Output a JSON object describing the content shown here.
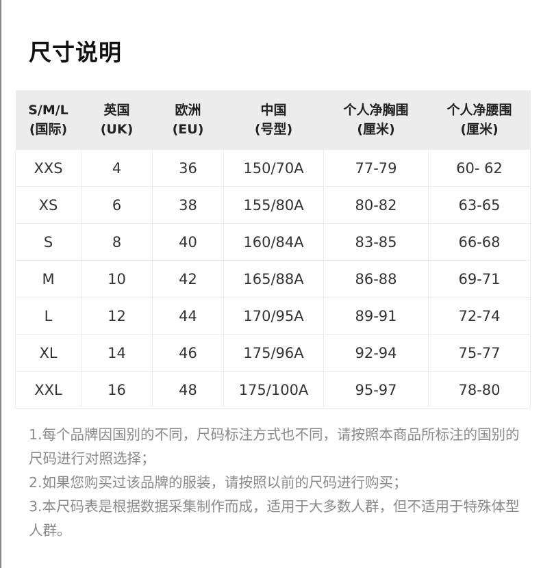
{
  "title": "尺寸说明",
  "table": {
    "headers": [
      [
        "S/M/L",
        "(国际)"
      ],
      [
        "英国",
        "(UK)"
      ],
      [
        "欧洲",
        "(EU)"
      ],
      [
        "中国",
        "(号型)"
      ],
      [
        "个人净胸围",
        "(厘米)"
      ],
      [
        "个人净腰围",
        "(厘米)"
      ]
    ],
    "rows": [
      [
        "XXS",
        "4",
        "36",
        "150/70A",
        "77-79",
        "60- 62"
      ],
      [
        "XS",
        "6",
        "38",
        "155/80A",
        "80-82",
        "63-65"
      ],
      [
        "S",
        "8",
        "40",
        "160/84A",
        "83-85",
        "66-68"
      ],
      [
        "M",
        "10",
        "42",
        "165/88A",
        "86-88",
        "69-71"
      ],
      [
        "L",
        "12",
        "44",
        "170/95A",
        "89-91",
        "72-74"
      ],
      [
        "XL",
        "14",
        "46",
        "175/96A",
        "92-94",
        "75-77"
      ],
      [
        "XXL",
        "16",
        "48",
        "175/100A",
        "95-97",
        "78-80"
      ]
    ]
  },
  "notes": [
    "1.每个品牌因国别的不同，尺码标注方式也不同，请按照本商品所标注的国别的尺码进行对照选择；",
    "2.如果您购买过该品牌的服装，请按照以前的尺码进行购买；",
    "3.本尺码表是根据数据采集制作而成，适用于大多数人群，但不适用于特殊体型人群。"
  ]
}
